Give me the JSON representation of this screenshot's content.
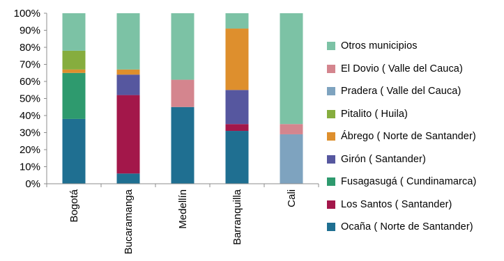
{
  "chart_data": {
    "type": "bar",
    "stacked": true,
    "percent": true,
    "categories": [
      "Bogotá",
      "Bucaramanga",
      "Medellín",
      "Barranquilla",
      "Cali"
    ],
    "yticks": [
      "0%",
      "10%",
      "20%",
      "30%",
      "40%",
      "50%",
      "60%",
      "70%",
      "80%",
      "90%",
      "100%"
    ],
    "ylim": [
      0,
      100
    ],
    "grid": false,
    "legend_position": "right",
    "series": [
      {
        "name": "Ocaña ( Norte de Santander)",
        "color": "#1f6f91",
        "values": [
          38,
          6,
          45,
          31,
          0
        ]
      },
      {
        "name": "Los Santos ( Santander)",
        "color": "#a3174a",
        "values": [
          0,
          46,
          0,
          4,
          0
        ]
      },
      {
        "name": "Fusagasugá ( Cundinamarca)",
        "color": "#2e9a6e",
        "values": [
          27,
          0,
          0,
          0,
          0
        ]
      },
      {
        "name": "Girón ( Santander)",
        "color": "#56579f",
        "values": [
          0,
          12,
          0,
          20,
          0
        ]
      },
      {
        "name": "Ábrego ( Norte de Santander)",
        "color": "#de8f2d",
        "values": [
          2,
          3,
          0,
          36,
          0
        ]
      },
      {
        "name": "Pitalito ( Huila)",
        "color": "#86ad3e",
        "values": [
          11,
          0,
          0,
          0,
          0
        ]
      },
      {
        "name": "Pradera ( Valle del Cauca)",
        "color": "#7ea3bf",
        "values": [
          0,
          0,
          0,
          0,
          29
        ]
      },
      {
        "name": "El Dovio ( Valle del Cauca)",
        "color": "#d4858e",
        "values": [
          0,
          0,
          16,
          0,
          6
        ]
      },
      {
        "name": "Otros municipios",
        "color": "#7cc2a5",
        "values": [
          22,
          33,
          39,
          9,
          65
        ]
      }
    ]
  }
}
